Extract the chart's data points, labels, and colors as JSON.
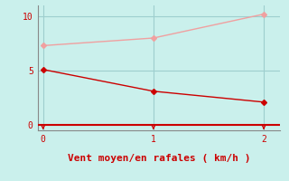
{
  "title": "",
  "xlabel": "Vent moyen/en rafales ( km/h )",
  "background_color": "#caf0ec",
  "line1_x": [
    0,
    1,
    2
  ],
  "line1_y": [
    7.3,
    8.0,
    10.2
  ],
  "line1_color": "#f0a0a0",
  "line2_x": [
    0,
    1,
    2
  ],
  "line2_y": [
    5.1,
    3.1,
    2.1
  ],
  "line2_color": "#cc0000",
  "xlim": [
    -0.05,
    2.15
  ],
  "ylim": [
    -0.5,
    11.0
  ],
  "yticks": [
    0,
    5,
    10
  ],
  "xticks": [
    0,
    1,
    2
  ],
  "grid_color": "#9ecece",
  "xlabel_color": "#cc0000",
  "tick_label_color": "#cc0000",
  "spine_color": "#888888",
  "axis_line_color": "#cc0000",
  "marker_size": 3,
  "line_width": 1.0
}
